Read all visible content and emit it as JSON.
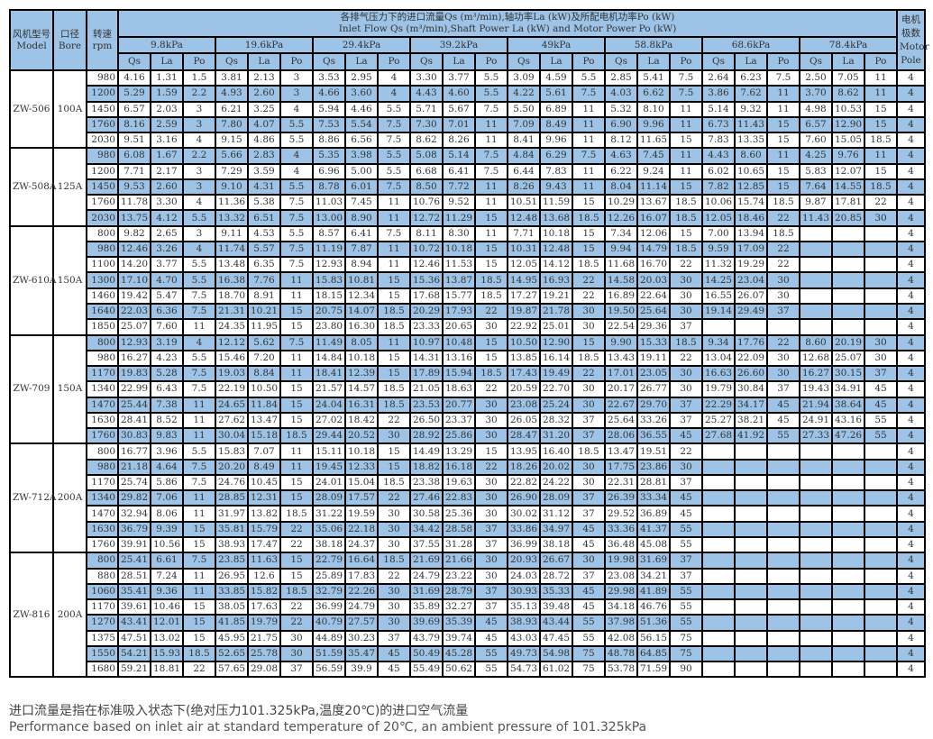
{
  "header": {
    "model_cn": "风机型号",
    "model_en": "Model",
    "bore_cn": "口径",
    "bore_en": "Bore",
    "rpm_cn": "转速",
    "rpm_en": "rpm",
    "title_cn": "各排气压力下的进口流量Qs (m³/min),轴功率La (kW)及所配电机功率Po (kW)",
    "title_en": "Inlet Flow Qs (m³/min),Shaft Power La (kW) and Motor Power Po (kW)",
    "pole_cn": "电机极数",
    "pole_en": "Motor Pole",
    "pressures": [
      "9.8kPa",
      "19.6kPa",
      "29.4kPa",
      "39.2kPa",
      "49kPa",
      "58.8kPa",
      "68.6kPa",
      "78.4kPa"
    ],
    "sub": [
      "Qs",
      "La",
      "Po"
    ]
  },
  "models": [
    {
      "model": "ZW-506",
      "bore": "100A",
      "rows": [
        [
          "980",
          "4.16",
          "1.31",
          "1.5",
          "3.81",
          "2.13",
          "3",
          "3.53",
          "2.95",
          "4",
          "3.30",
          "3.77",
          "5.5",
          "3.09",
          "4.59",
          "5.5",
          "2.85",
          "5.41",
          "7.5",
          "2.64",
          "6.23",
          "7.5",
          "2.50",
          "7.05",
          "11",
          "4"
        ],
        [
          "1200",
          "5.29",
          "1.59",
          "2.2",
          "4.93",
          "2.60",
          "3",
          "4.66",
          "3.60",
          "4",
          "4.43",
          "4.60",
          "5.5",
          "4.22",
          "5.61",
          "7.5",
          "4.03",
          "6.62",
          "7.5",
          "3.86",
          "7.62",
          "11",
          "3.70",
          "8.62",
          "11",
          "4"
        ],
        [
          "1450",
          "6.57",
          "2.03",
          "3",
          "6.21",
          "3.25",
          "4",
          "5.94",
          "4.46",
          "5.5",
          "5.71",
          "5.67",
          "7.5",
          "5.50",
          "6.89",
          "11",
          "5.32",
          "8.10",
          "11",
          "5.14",
          "9.32",
          "11",
          "4.98",
          "10.53",
          "15",
          "4"
        ],
        [
          "1760",
          "8.16",
          "2.59",
          "3",
          "7.80",
          "4.07",
          "5.5",
          "7.53",
          "5.54",
          "7.5",
          "7.30",
          "7.01",
          "11",
          "7.09",
          "8.49",
          "11",
          "6.90",
          "9.96",
          "11",
          "6.73",
          "11.43",
          "15",
          "6.57",
          "12.90",
          "15",
          "4"
        ],
        [
          "2030",
          "9.51",
          "3.16",
          "4",
          "9.15",
          "4.86",
          "5.5",
          "8.86",
          "6.56",
          "7.5",
          "8.62",
          "8.26",
          "11",
          "8.41",
          "9.96",
          "11",
          "8.12",
          "11.65",
          "15",
          "7.83",
          "13.35",
          "15",
          "7.60",
          "15.05",
          "18.5",
          "4"
        ]
      ]
    },
    {
      "model": "ZW-508A",
      "bore": "125A",
      "rows": [
        [
          "980",
          "6.08",
          "1.67",
          "2.2",
          "5.66",
          "2.83",
          "4",
          "5.35",
          "3.98",
          "5.5",
          "5.08",
          "5.14",
          "7.5",
          "4.84",
          "6.29",
          "7.5",
          "4.63",
          "7.45",
          "11",
          "4.43",
          "8.60",
          "11",
          "4.25",
          "9.76",
          "11",
          "4"
        ],
        [
          "1200",
          "7.71",
          "2.17",
          "3",
          "7.29",
          "3.59",
          "4",
          "6.96",
          "5.00",
          "5.5",
          "6.68",
          "6.41",
          "7.5",
          "6.44",
          "7.83",
          "11",
          "6.22",
          "9.24",
          "11",
          "6.02",
          "10.65",
          "15",
          "5.83",
          "12.07",
          "15",
          "4"
        ],
        [
          "1450",
          "9.53",
          "2.60",
          "3",
          "9.10",
          "4.31",
          "5.5",
          "8.78",
          "6.01",
          "7.5",
          "8.50",
          "7.72",
          "11",
          "8.26",
          "9.43",
          "11",
          "8.04",
          "11.14",
          "15",
          "7.82",
          "12.85",
          "15",
          "7.64",
          "14.55",
          "18.5",
          "4"
        ],
        [
          "1760",
          "11.78",
          "3.30",
          "4",
          "11.36",
          "5.38",
          "7.5",
          "11.03",
          "7.45",
          "11",
          "10.76",
          "9.52",
          "11",
          "10.51",
          "11.59",
          "15",
          "10.29",
          "13.67",
          "18.5",
          "10.06",
          "15.74",
          "18.5",
          "9.87",
          "17.81",
          "22",
          "4"
        ],
        [
          "2030",
          "13.75",
          "4.12",
          "5.5",
          "13.32",
          "6.51",
          "7.5",
          "13.00",
          "8.90",
          "11",
          "12.72",
          "11.29",
          "15",
          "12.48",
          "13.68",
          "18.5",
          "12.26",
          "16.07",
          "18.5",
          "12.05",
          "18.46",
          "22",
          "11.43",
          "20.85",
          "30",
          "4"
        ]
      ]
    },
    {
      "model": "ZW-610A",
      "bore": "150A",
      "rows": [
        [
          "800",
          "9.82",
          "2.65",
          "3",
          "9.11",
          "4.53",
          "5.5",
          "8.57",
          "6.41",
          "7.5",
          "8.11",
          "8.30",
          "11",
          "7.71",
          "10.18",
          "15",
          "7.34",
          "12.06",
          "15",
          "7.00",
          "13.94",
          "18.5",
          "",
          "",
          "",
          "4"
        ],
        [
          "980",
          "12.46",
          "3.26",
          "4",
          "11.74",
          "5.57",
          "7.5",
          "11.19",
          "7.87",
          "11",
          "10.72",
          "10.18",
          "15",
          "10.31",
          "12.48",
          "15",
          "9.94",
          "14.79",
          "18.5",
          "9.59",
          "17.09",
          "22",
          "",
          "",
          "",
          "4"
        ],
        [
          "1100",
          "14.20",
          "3.77",
          "5.5",
          "13.48",
          "6.35",
          "7.5",
          "12.93",
          "8.94",
          "11",
          "12.46",
          "11.53",
          "15",
          "12.05",
          "14.12",
          "18.5",
          "11.68",
          "16.70",
          "22",
          "11.32",
          "19.29",
          "22",
          "",
          "",
          "",
          "4"
        ],
        [
          "1300",
          "17.10",
          "4.70",
          "5.5",
          "16.38",
          "7.76",
          "11",
          "15.83",
          "10.81",
          "15",
          "15.36",
          "13.87",
          "18.5",
          "14.95",
          "16.93",
          "22",
          "14.58",
          "20.03",
          "30",
          "14.25",
          "23.04",
          "30",
          "",
          "",
          "",
          "4"
        ],
        [
          "1460",
          "19.42",
          "5.47",
          "7.5",
          "18.70",
          "8.91",
          "11",
          "18.15",
          "12.34",
          "15",
          "17.68",
          "15.77",
          "18.5",
          "17.27",
          "19.21",
          "22",
          "16.89",
          "22.64",
          "30",
          "16.55",
          "26.07",
          "30",
          "",
          "",
          "",
          "4"
        ],
        [
          "1640",
          "22.03",
          "6.36",
          "7.5",
          "21.31",
          "10.21",
          "15",
          "20.75",
          "14.07",
          "18.5",
          "20.29",
          "17.93",
          "22",
          "19.87",
          "21.78",
          "30",
          "19.50",
          "25.64",
          "30",
          "19.14",
          "29.49",
          "37",
          "",
          "",
          "",
          "4"
        ],
        [
          "1850",
          "25.07",
          "7.60",
          "11",
          "24.35",
          "11.95",
          "15",
          "23.80",
          "16.30",
          "18.5",
          "23.33",
          "20.65",
          "30",
          "22.92",
          "25.01",
          "30",
          "22.54",
          "29.36",
          "37",
          "",
          "",
          "",
          "",
          "",
          "",
          "4"
        ]
      ]
    },
    {
      "model": "ZW-709",
      "bore": "150A",
      "rows": [
        [
          "800",
          "12.93",
          "3.19",
          "4",
          "12.12",
          "5.62",
          "7.5",
          "11.49",
          "8.05",
          "11",
          "10.97",
          "10.48",
          "15",
          "10.50",
          "12.90",
          "15",
          "9.90",
          "15.33",
          "18.5",
          "9.34",
          "17.76",
          "22",
          "8.60",
          "20.19",
          "30",
          "4"
        ],
        [
          "980",
          "16.27",
          "4.23",
          "5.5",
          "15.46",
          "7.20",
          "11",
          "14.84",
          "10.18",
          "15",
          "14.31",
          "13.16",
          "15",
          "13.85",
          "16.14",
          "18.5",
          "13.43",
          "19.11",
          "22",
          "13.04",
          "22.09",
          "30",
          "12.68",
          "25.07",
          "30",
          "4"
        ],
        [
          "1170",
          "19.83",
          "5.28",
          "7.5",
          "19.03",
          "8.84",
          "11",
          "18.41",
          "12.39",
          "15",
          "17.89",
          "15.94",
          "18.5",
          "17.43",
          "19.49",
          "22",
          "17.01",
          "23.05",
          "30",
          "16.63",
          "26.60",
          "30",
          "16.27",
          "30.15",
          "37",
          "4"
        ],
        [
          "1340",
          "22.99",
          "6.43",
          "7.5",
          "22.19",
          "10.50",
          "15",
          "21.57",
          "14.57",
          "18.5",
          "21.05",
          "18.63",
          "22",
          "20.59",
          "22.70",
          "30",
          "20.17",
          "26.77",
          "30",
          "19.79",
          "30.84",
          "37",
          "19.43",
          "34.91",
          "45",
          "4"
        ],
        [
          "1470",
          "25.44",
          "7.38",
          "11",
          "24.65",
          "11.84",
          "15",
          "24.04",
          "16.31",
          "18.5",
          "23.53",
          "20.77",
          "30",
          "23.08",
          "25.24",
          "30",
          "22.67",
          "29.70",
          "37",
          "22.29",
          "34.17",
          "45",
          "21.94",
          "38.64",
          "45",
          "4"
        ],
        [
          "1630",
          "28.41",
          "8.52",
          "11",
          "27.62",
          "13.47",
          "15",
          "27.02",
          "18.42",
          "22",
          "26.50",
          "23.37",
          "30",
          "26.05",
          "28.32",
          "37",
          "25.64",
          "33.26",
          "37",
          "25.27",
          "38.21",
          "45",
          "24.91",
          "43.16",
          "55",
          "4"
        ],
        [
          "1760",
          "30.83",
          "9.83",
          "11",
          "30.04",
          "15.18",
          "18.5",
          "29.44",
          "20.52",
          "30",
          "28.92",
          "25.86",
          "30",
          "28.47",
          "31.20",
          "37",
          "28.06",
          "36.55",
          "45",
          "27.68",
          "41.92",
          "55",
          "27.33",
          "47.26",
          "55",
          "4"
        ]
      ]
    },
    {
      "model": "ZW-712A",
      "bore": "200A",
      "rows": [
        [
          "800",
          "16.77",
          "3.96",
          "5.5",
          "15.83",
          "7.07",
          "11",
          "15.11",
          "10.18",
          "15",
          "14.49",
          "13.29",
          "15",
          "13.95",
          "16.40",
          "18.5",
          "13.47",
          "19.51",
          "22",
          "",
          "",
          "",
          "",
          "",
          "",
          "4"
        ],
        [
          "980",
          "21.18",
          "4.64",
          "7.5",
          "20.20",
          "8.49",
          "11",
          "19.45",
          "12.33",
          "15",
          "18.82",
          "16.18",
          "22",
          "18.26",
          "20.02",
          "30",
          "17.75",
          "23.86",
          "30",
          "",
          "",
          "",
          "",
          "",
          "",
          "4"
        ],
        [
          "1170",
          "25.74",
          "5.86",
          "7.5",
          "24.76",
          "10.45",
          "15",
          "24.01",
          "15.04",
          "18.5",
          "23.38",
          "19.63",
          "30",
          "22.82",
          "24.22",
          "30",
          "22.31",
          "28.81",
          "37",
          "",
          "",
          "",
          "",
          "",
          "",
          "4"
        ],
        [
          "1340",
          "29.82",
          "7.06",
          "11",
          "28.85",
          "12.31",
          "15",
          "28.09",
          "17.57",
          "22",
          "27.46",
          "22.83",
          "30",
          "26.90",
          "28.09",
          "37",
          "26.39",
          "33.34",
          "45",
          "",
          "",
          "",
          "",
          "",
          "",
          "4"
        ],
        [
          "1470",
          "32.94",
          "8.06",
          "11",
          "31.97",
          "13.82",
          "18.5",
          "31.22",
          "19.59",
          "30",
          "30.58",
          "25.36",
          "30",
          "30.02",
          "31.12",
          "37",
          "29.52",
          "36.89",
          "45",
          "",
          "",
          "",
          "",
          "",
          "",
          "4"
        ],
        [
          "1630",
          "36.79",
          "9.39",
          "15",
          "35.81",
          "15.79",
          "22",
          "35.06",
          "22.18",
          "30",
          "34.42",
          "28.58",
          "37",
          "33.86",
          "34.97",
          "45",
          "33.36",
          "41.37",
          "55",
          "",
          "",
          "",
          "",
          "",
          "",
          "4"
        ],
        [
          "1760",
          "39.91",
          "10.56",
          "15",
          "38.93",
          "17.47",
          "22",
          "38.18",
          "24.37",
          "30",
          "37.55",
          "31.28",
          "37",
          "36.99",
          "38.18",
          "45",
          "36.48",
          "45.08",
          "55",
          "",
          "",
          "",
          "",
          "",
          "",
          "4"
        ]
      ]
    },
    {
      "model": "ZW-816",
      "bore": "200A",
      "rows": [
        [
          "800",
          "25.41",
          "6.61",
          "7.5",
          "23.85",
          "11.63",
          "15",
          "22.79",
          "16.64",
          "18.5",
          "21.69",
          "21.66",
          "30",
          "20.93",
          "26.67",
          "30",
          "19.98",
          "31.69",
          "37",
          "",
          "",
          "",
          "",
          "",
          "",
          "4"
        ],
        [
          "880",
          "28.51",
          "7.24",
          "11",
          "26.95",
          "12.6",
          "15",
          "25.89",
          "17.83",
          "22",
          "24.79",
          "23.22",
          "30",
          "24.03",
          "28.72",
          "37",
          "23.08",
          "34.21",
          "37",
          "",
          "",
          "",
          "",
          "",
          "",
          "4"
        ],
        [
          "1060",
          "35.41",
          "9.36",
          "11",
          "33.85",
          "15.82",
          "18.5",
          "32.79",
          "22.26",
          "30",
          "31.69",
          "28.79",
          "37",
          "30.93",
          "35.33",
          "45",
          "29.98",
          "41.89",
          "55",
          "",
          "",
          "",
          "",
          "",
          "",
          "4"
        ],
        [
          "1170",
          "39.61",
          "10.46",
          "15",
          "38.05",
          "17.63",
          "22",
          "36.99",
          "24.79",
          "30",
          "35.89",
          "32.27",
          "37",
          "35.13",
          "39.48",
          "45",
          "34.18",
          "46.76",
          "55",
          "",
          "",
          "",
          "",
          "",
          "",
          "4"
        ],
        [
          "1270",
          "43.41",
          "12.01",
          "15",
          "41.85",
          "19.79",
          "22",
          "40.79",
          "27.57",
          "30",
          "39.69",
          "35.39",
          "45",
          "38.93",
          "43.44",
          "55",
          "37.98",
          "51.36",
          "55",
          "",
          "",
          "",
          "",
          "",
          "",
          "4"
        ],
        [
          "1375",
          "47.51",
          "13.02",
          "15",
          "45.95",
          "21.75",
          "30",
          "44.89",
          "30.23",
          "37",
          "43.79",
          "39.74",
          "45",
          "43.03",
          "47.45",
          "55",
          "42.08",
          "56.15",
          "75",
          "",
          "",
          "",
          "",
          "",
          "",
          "4"
        ],
        [
          "1550",
          "54.21",
          "15.93",
          "18.5",
          "52.65",
          "25.78",
          "30",
          "51.59",
          "35.47",
          "45",
          "50.49",
          "45.28",
          "55",
          "49.73",
          "54.98",
          "75",
          "48.78",
          "64.85",
          "75",
          "",
          "",
          "",
          "",
          "",
          "",
          "4"
        ],
        [
          "1680",
          "59.21",
          "18.81",
          "22",
          "57.65",
          "29.08",
          "37",
          "56.59",
          "39.9",
          "45",
          "55.49",
          "50.62",
          "55",
          "54.73",
          "61.02",
          "75",
          "53.78",
          "71.59",
          "90",
          "",
          "",
          "",
          "",
          "",
          "",
          "4"
        ]
      ]
    }
  ],
  "notes": {
    "cn": "进口流量是指在标准吸入状态下(绝对压力101.325kPa,温度20℃)的进口空气流量",
    "en": "Performance based on inlet air at standard temperature of 20℃, an ambient pressure of 101.325kPa"
  },
  "colors": {
    "highlight": "#9dc3e6",
    "border": "#000000"
  }
}
